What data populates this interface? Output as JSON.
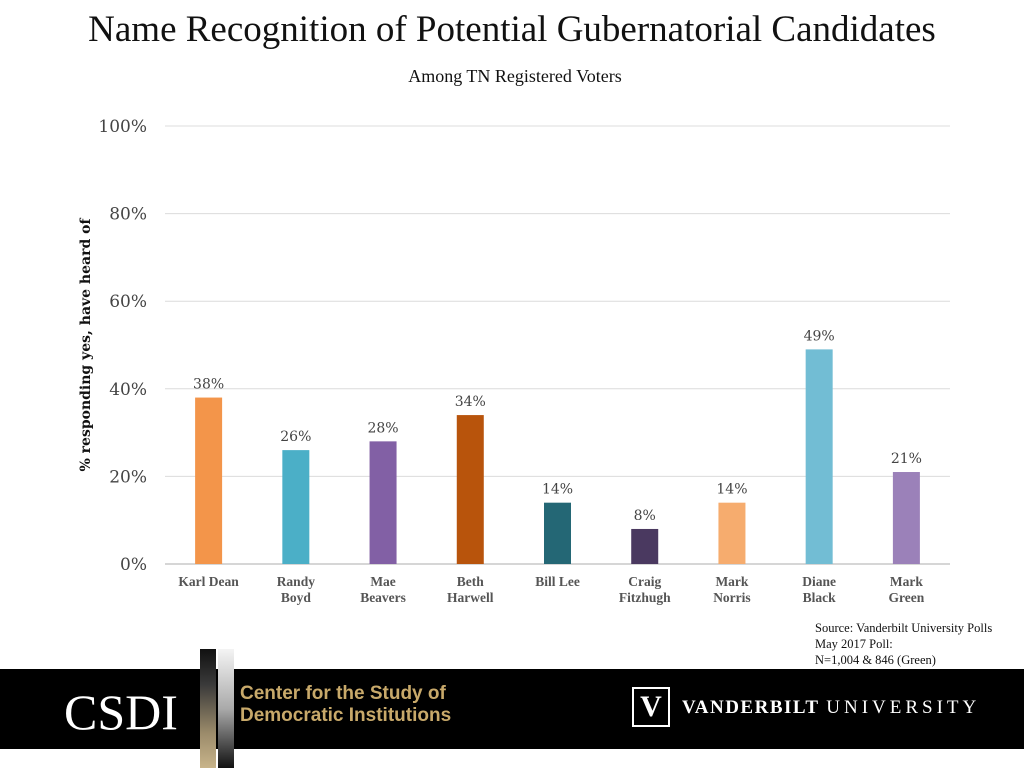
{
  "chart_data": {
    "type": "bar",
    "title": "Name Recognition of Potential Gubernatorial Candidates",
    "subtitle": "Among TN Registered Voters",
    "ylabel": "% responding yes, have heard of",
    "xlabel": "",
    "ylim": [
      0,
      100
    ],
    "yticks": [
      "0%",
      "20%",
      "40%",
      "60%",
      "80%",
      "100%"
    ],
    "ytick_values": [
      0,
      20,
      40,
      60,
      80,
      100
    ],
    "grid": true,
    "categories": [
      [
        "Karl Dean"
      ],
      [
        "Randy",
        "Boyd"
      ],
      [
        "Mae",
        "Beavers"
      ],
      [
        "Beth",
        "Harwell"
      ],
      [
        "Bill Lee"
      ],
      [
        "Craig",
        "Fitzhugh"
      ],
      [
        "Mark",
        "Norris"
      ],
      [
        "Diane",
        "Black"
      ],
      [
        "Mark",
        "Green"
      ]
    ],
    "values": [
      38,
      26,
      28,
      34,
      14,
      8,
      14,
      49,
      21
    ],
    "value_labels": [
      "38%",
      "26%",
      "28%",
      "34%",
      "14%",
      "8%",
      "14%",
      "49%",
      "21%"
    ],
    "colors": [
      "#f3954a",
      "#4bafc7",
      "#8260a5",
      "#b8540c",
      "#246775",
      "#4a3960",
      "#f6ac6e",
      "#72bdd4",
      "#9b81b9"
    ]
  },
  "source": {
    "line1": "Source: Vanderbilt University Polls",
    "line2": "May 2017 Poll:",
    "line3": "N=1,004 & 846 (Green)"
  },
  "footer": {
    "csdi_logo": "CSDI",
    "csdi_line1": "Center for the Study of",
    "csdi_line2": "Democratic Institutions",
    "vu_bold": "VANDERBILT",
    "vu_light": "UNIVERSITY",
    "vu_shield": "V"
  }
}
